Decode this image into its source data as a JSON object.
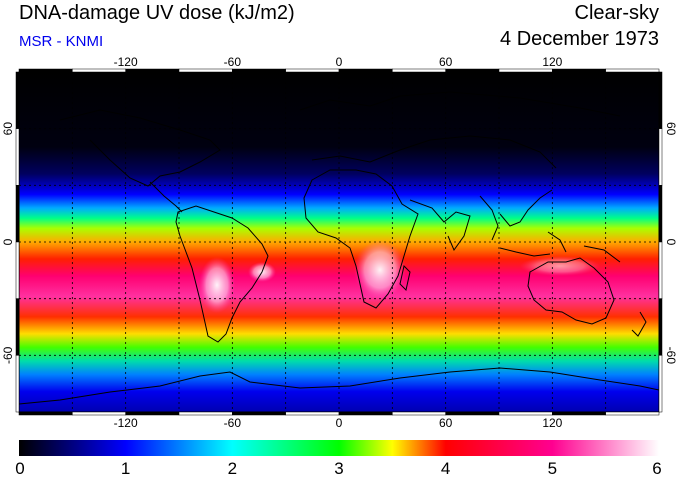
{
  "header": {
    "title": "DNA-damage UV dose (kJ/m2)",
    "source": "MSR - KNMI",
    "condition": "Clear-sky",
    "date": "4 December 1973"
  },
  "map": {
    "lon_ticks": [
      {
        "value": -120,
        "label": "-120"
      },
      {
        "value": -60,
        "label": "-60"
      },
      {
        "value": 0,
        "label": "0"
      },
      {
        "value": 60,
        "label": "60"
      },
      {
        "value": 120,
        "label": "120"
      }
    ],
    "lat_ticks": [
      {
        "value": 60,
        "label": "60"
      },
      {
        "value": 0,
        "label": "0"
      },
      {
        "value": -60,
        "label": "-60"
      }
    ],
    "lon_range": [
      -180,
      180
    ],
    "lat_range": [
      -90,
      90
    ],
    "grid_spacing_deg": 30
  },
  "colorbar": {
    "min": 0,
    "max": 6,
    "labels": [
      "0",
      "1",
      "2",
      "3",
      "4",
      "5",
      "6"
    ],
    "colors": {
      "c0": "#000000",
      "c1": "#0000ff",
      "c2": "#00ffff",
      "c3": "#00ff00",
      "c35": "#ffff00",
      "c4": "#ff0000",
      "c5": "#ff0090",
      "c6": "#ffffff"
    }
  }
}
